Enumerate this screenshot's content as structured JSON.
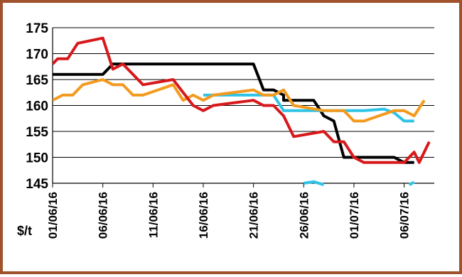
{
  "chart_data": {
    "type": "line",
    "title": "",
    "xlabel": "",
    "ylabel": "$/t",
    "ylim": [
      145,
      175
    ],
    "y_ticks": [
      "145",
      "150",
      "155",
      "160",
      "165",
      "170",
      "175"
    ],
    "x_range": [
      "2016-06-01",
      "2016-07-09"
    ],
    "x_tick_labels": [
      "01/06/16",
      "06/06/16",
      "11/06/16",
      "16/06/16",
      "21/06/16",
      "26/06/16",
      "01/07/16",
      "06/07/16"
    ],
    "x_tick_dates": [
      "2016-06-01",
      "2016-06-06",
      "2016-06-11",
      "2016-06-16",
      "2016-06-21",
      "2016-06-26",
      "2016-07-01",
      "2016-07-06"
    ],
    "grid": "horizontal",
    "legend": "none",
    "series": [
      {
        "color": "#000000",
        "points": [
          [
            "2016-06-01",
            166
          ],
          [
            "2016-06-06",
            166
          ],
          [
            "2016-06-07",
            168
          ],
          [
            "2016-06-21",
            168
          ],
          [
            "2016-06-22",
            163
          ],
          [
            "2016-06-23",
            163
          ],
          [
            "2016-06-24",
            162
          ],
          [
            "2016-06-24",
            161
          ],
          [
            "2016-06-27",
            161
          ],
          [
            "2016-06-28",
            158
          ],
          [
            "2016-06-29",
            157
          ],
          [
            "2016-06-30",
            150
          ],
          [
            "2016-07-05",
            150
          ],
          [
            "2016-07-06",
            149
          ],
          [
            "2016-07-07",
            149
          ]
        ]
      },
      {
        "color": "#2ec4e6",
        "points": [
          [
            "2016-06-16",
            162
          ],
          [
            "2016-06-23",
            162
          ],
          [
            "2016-06-24",
            159
          ],
          [
            "2016-06-30",
            159
          ],
          [
            "2016-07-02",
            159
          ],
          [
            "2016-07-04",
            159.3
          ],
          [
            "2016-07-05",
            158.6
          ],
          [
            "2016-07-06",
            157
          ],
          [
            "2016-07-07",
            157
          ]
        ]
      },
      {
        "color": "#2ec4e6",
        "points": [
          [
            "2016-06-26",
            145
          ],
          [
            "2016-06-27",
            145.3
          ],
          [
            "2016-06-28",
            144.7
          ]
        ]
      },
      {
        "color": "#2ec4e6",
        "points": [
          [
            "2016-07-06.5",
            144.7
          ],
          [
            "2016-07-07",
            145.2
          ]
        ]
      },
      {
        "color": "#f39a1e",
        "points": [
          [
            "2016-06-01",
            161
          ],
          [
            "2016-06-02",
            162
          ],
          [
            "2016-06-03",
            162
          ],
          [
            "2016-06-04",
            164
          ],
          [
            "2016-06-06",
            165
          ],
          [
            "2016-06-07",
            164
          ],
          [
            "2016-06-08",
            164
          ],
          [
            "2016-06-09",
            162
          ],
          [
            "2016-06-10",
            162
          ],
          [
            "2016-06-13",
            164
          ],
          [
            "2016-06-14",
            161
          ],
          [
            "2016-06-15",
            162
          ],
          [
            "2016-06-16",
            161
          ],
          [
            "2016-06-17",
            162
          ],
          [
            "2016-06-21",
            163
          ],
          [
            "2016-06-22",
            162
          ],
          [
            "2016-06-23",
            162
          ],
          [
            "2016-06-24",
            163
          ],
          [
            "2016-06-25",
            160
          ],
          [
            "2016-06-28",
            159
          ],
          [
            "2016-06-30",
            159
          ],
          [
            "2016-07-01",
            157
          ],
          [
            "2016-07-02",
            157
          ],
          [
            "2016-07-05",
            159
          ],
          [
            "2016-07-06",
            159
          ],
          [
            "2016-07-07",
            158
          ],
          [
            "2016-07-08",
            161
          ]
        ]
      },
      {
        "color": "#d7191c",
        "points": [
          [
            "2016-06-01",
            168
          ],
          [
            "2016-06-01.5",
            169
          ],
          [
            "2016-06-02.5",
            169
          ],
          [
            "2016-06-03.5",
            172
          ],
          [
            "2016-06-06",
            173
          ],
          [
            "2016-06-07",
            167
          ],
          [
            "2016-06-08",
            168
          ],
          [
            "2016-06-10",
            164
          ],
          [
            "2016-06-13",
            165
          ],
          [
            "2016-06-15",
            160
          ],
          [
            "2016-06-16",
            159
          ],
          [
            "2016-06-17",
            160
          ],
          [
            "2016-06-21",
            161
          ],
          [
            "2016-06-22",
            160
          ],
          [
            "2016-06-23",
            160
          ],
          [
            "2016-06-24",
            158
          ],
          [
            "2016-06-25",
            154
          ],
          [
            "2016-06-28",
            155
          ],
          [
            "2016-06-29",
            153
          ],
          [
            "2016-06-30",
            153
          ],
          [
            "2016-07-01",
            150
          ],
          [
            "2016-07-02",
            149
          ],
          [
            "2016-07-06",
            149
          ],
          [
            "2016-07-07",
            151
          ],
          [
            "2016-07-07.5",
            149
          ],
          [
            "2016-07-08.5",
            153
          ]
        ]
      }
    ]
  }
}
